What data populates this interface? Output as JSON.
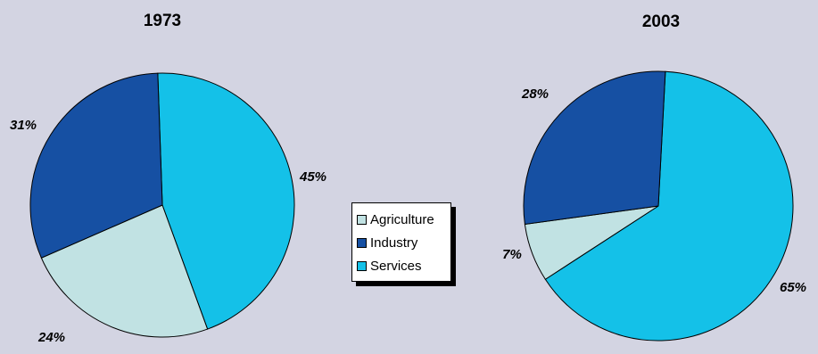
{
  "chart_data": [
    {
      "type": "pie",
      "title": "1973",
      "categories": [
        "Agriculture",
        "Industry",
        "Services"
      ],
      "values": [
        24,
        31,
        45
      ],
      "labels": [
        "24%",
        "31%",
        "45%"
      ]
    },
    {
      "type": "pie",
      "title": "2003",
      "categories": [
        "Agriculture",
        "Industry",
        "Services"
      ],
      "values": [
        7,
        28,
        65
      ],
      "labels": [
        "7%",
        "28%",
        "65%"
      ]
    }
  ],
  "legend": {
    "placement": "center",
    "items": [
      {
        "label": "Agriculture",
        "color": "#c1e2e3"
      },
      {
        "label": "Industry",
        "color": "#1650a3"
      },
      {
        "label": "Services",
        "color": "#14c1e8"
      }
    ]
  },
  "colors": {
    "Agriculture": "#c1e2e3",
    "Industry": "#1650a3",
    "Services": "#14c1e8",
    "background": "#d3d4e2"
  }
}
